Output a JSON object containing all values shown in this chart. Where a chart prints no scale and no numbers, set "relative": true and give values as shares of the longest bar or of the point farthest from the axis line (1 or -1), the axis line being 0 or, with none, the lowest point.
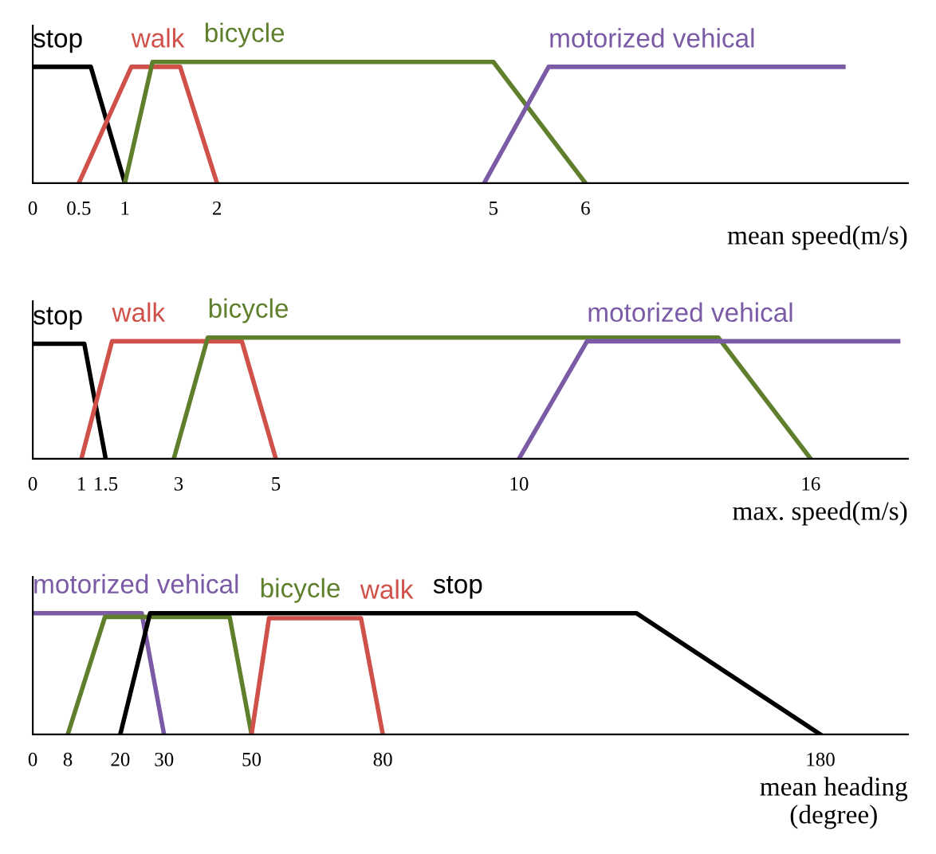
{
  "chart_data": [
    {
      "type": "line",
      "relative": true,
      "xlabel": "mean speed(m/s)",
      "xlim": [
        0,
        9.5
      ],
      "xticks": [
        0,
        0.5,
        1,
        2,
        5,
        6
      ],
      "series": [
        {
          "name": "stop",
          "color": "#000000",
          "x": [
            0,
            0.63,
            1
          ],
          "values": [
            0.96,
            0.96,
            0
          ]
        },
        {
          "name": "walk",
          "color": "#d0504a",
          "x": [
            0.5,
            1.07,
            1.6,
            2
          ],
          "values": [
            0,
            0.96,
            0.96,
            0
          ]
        },
        {
          "name": "bicycle",
          "color": "#5f7f2c",
          "x": [
            1,
            1.3,
            5,
            6
          ],
          "values": [
            0,
            1,
            1,
            0
          ]
        },
        {
          "name": "motorized vehical",
          "color": "#7b5aa6",
          "x": [
            4.9,
            5.6,
            8.8
          ],
          "values": [
            0,
            0.96,
            0.96
          ]
        }
      ]
    },
    {
      "type": "line",
      "relative": true,
      "xlabel": "max. speed(m/s)",
      "xlim": [
        0,
        18
      ],
      "xticks": [
        0,
        1,
        1.5,
        3,
        5,
        10,
        16
      ],
      "series": [
        {
          "name": "stop",
          "color": "#000000",
          "x": [
            0,
            1.06,
            1.5
          ],
          "values": [
            0.95,
            0.95,
            0
          ]
        },
        {
          "name": "walk",
          "color": "#d0504a",
          "x": [
            1,
            1.63,
            4.3,
            5
          ],
          "values": [
            0,
            0.97,
            0.97,
            0
          ]
        },
        {
          "name": "bicycle",
          "color": "#5f7f2c",
          "x": [
            2.9,
            3.6,
            14.1,
            16
          ],
          "values": [
            0,
            1,
            1,
            0
          ]
        },
        {
          "name": "motorized vehical",
          "color": "#7b5aa6",
          "x": [
            10,
            11.4,
            17.8
          ],
          "values": [
            0,
            0.97,
            0.97
          ]
        }
      ]
    },
    {
      "type": "line",
      "relative": true,
      "xlabel": "mean heading\n(degree)",
      "xlim": [
        0,
        200
      ],
      "xticks": [
        0,
        8,
        20,
        30,
        50,
        80,
        180
      ],
      "series": [
        {
          "name": "motorized vehical",
          "color": "#7b5aa6",
          "x": [
            0,
            24.9,
            30
          ],
          "values": [
            1,
            1,
            0
          ]
        },
        {
          "name": "bicycle",
          "color": "#5f7f2c",
          "x": [
            8,
            16.5,
            45,
            50
          ],
          "values": [
            0,
            0.97,
            0.97,
            0
          ]
        },
        {
          "name": "walk",
          "color": "#d0504a",
          "x": [
            50,
            54,
            75,
            80
          ],
          "values": [
            0,
            0.96,
            0.96,
            0
          ]
        },
        {
          "name": "stop",
          "color": "#000000",
          "x": [
            20,
            26.8,
            138,
            180
          ],
          "values": [
            0,
            1,
            1,
            0
          ]
        }
      ]
    }
  ]
}
